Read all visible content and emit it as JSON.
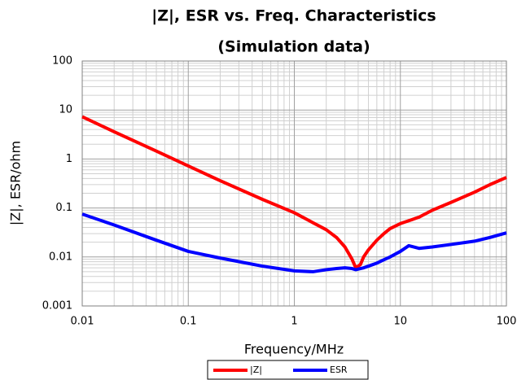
{
  "chart_data": {
    "type": "line",
    "title": "|Z|, ESR vs. Freq. Characteristics",
    "subtitle": "(Simulation data)",
    "x_label": "Frequency/MHz",
    "y_label": "|Z|, ESR/ohm",
    "x": [
      0.01,
      0.02,
      0.05,
      0.1,
      0.2,
      0.5,
      1,
      1.5,
      2,
      2.5,
      3,
      3.5,
      3.8,
      4.2,
      4.5,
      5,
      6,
      7,
      8,
      10,
      12,
      15,
      20,
      30,
      50,
      70,
      100
    ],
    "series": [
      {
        "name": "|Z|",
        "color": "#ff0000",
        "values": [
          7.3,
          3.6,
          1.45,
          0.72,
          0.36,
          0.15,
          0.08,
          0.05,
          0.036,
          0.025,
          0.016,
          0.009,
          0.006,
          0.007,
          0.01,
          0.014,
          0.022,
          0.03,
          0.038,
          0.048,
          0.055,
          0.065,
          0.09,
          0.13,
          0.21,
          0.3,
          0.42
        ]
      },
      {
        "name": "ESR",
        "color": "#0000ff",
        "values": [
          0.075,
          0.045,
          0.022,
          0.013,
          0.0095,
          0.0065,
          0.0052,
          0.005,
          0.0055,
          0.0058,
          0.006,
          0.0058,
          0.0055,
          0.0058,
          0.006,
          0.0065,
          0.0075,
          0.0088,
          0.01,
          0.013,
          0.017,
          0.015,
          0.016,
          0.018,
          0.021,
          0.025,
          0.031
        ]
      }
    ],
    "xlim": [
      0.01,
      100
    ],
    "xticks": [
      0.01,
      0.1,
      1,
      10,
      100
    ],
    "ylim": [
      0.001,
      100
    ],
    "yticks": [
      0.001,
      0.01,
      0.1,
      1,
      10,
      100
    ],
    "xlog": true,
    "ylog": true,
    "grid": true,
    "legend": "bottom"
  }
}
